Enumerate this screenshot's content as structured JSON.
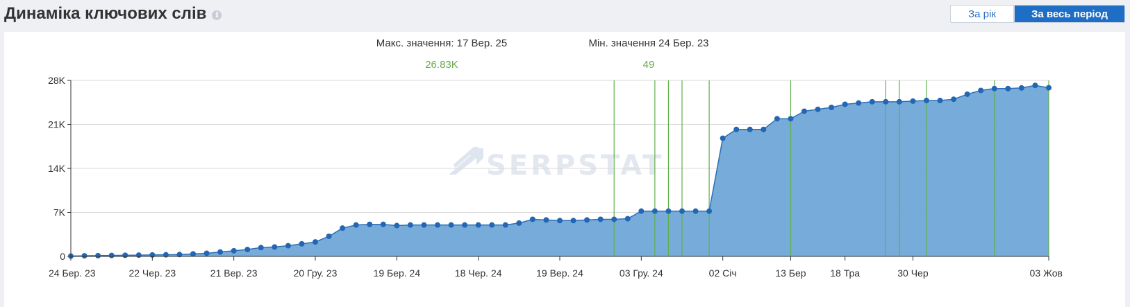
{
  "header": {
    "title": "Динаміка ключових слів",
    "info_icon": "info-icon",
    "btn_year": "За рік",
    "btn_all": "За весь період"
  },
  "stats": {
    "max_label": "Макс. значення: 17 Вер. 25",
    "max_value": "26.83K",
    "min_label": "Мін. значення 24 Бер. 23",
    "min_value": "49"
  },
  "watermark": "SERPSTAT",
  "chart_data": {
    "type": "area",
    "ylim": [
      0,
      28000
    ],
    "yticks": [
      0,
      7000,
      14000,
      21000,
      28000
    ],
    "ytick_labels": [
      "0",
      "7K",
      "14K",
      "21K",
      "28K"
    ],
    "xlim": [
      0,
      72
    ],
    "xticks": [
      0,
      6,
      12,
      18,
      24,
      30,
      36,
      42,
      48,
      53,
      57,
      62,
      72
    ],
    "xtick_labels": [
      "24 Бер. 23",
      "22 Чер. 23",
      "21 Вер. 23",
      "20 Гру. 23",
      "19 Бер. 24",
      "18 Чер. 24",
      "19 Вер. 24",
      "03 Гру. 24",
      "02 Січ",
      "13 Бер",
      "18 Тра",
      "30 Чер",
      "03 Жов"
    ],
    "series": [
      {
        "values": [
          49,
          100,
          120,
          150,
          180,
          200,
          230,
          260,
          300,
          400,
          500,
          700,
          900,
          1100,
          1400,
          1500,
          1700,
          2000,
          2300,
          3200,
          4500,
          5000,
          5100,
          5100,
          4900,
          5000,
          5000,
          5000,
          5000,
          5000,
          5000,
          5000,
          5000,
          5300,
          5900,
          5800,
          5700,
          5700,
          5800,
          5900,
          5900,
          6000,
          7200,
          7200,
          7200,
          7200,
          7200,
          7200,
          18800,
          20200,
          20200,
          20200,
          21900,
          21900,
          23100,
          23400,
          23700,
          24200,
          24400,
          24600,
          24600,
          24600,
          24700,
          24800,
          24800,
          25000,
          25800,
          26400,
          26700,
          26700,
          26800,
          27200,
          26830
        ]
      }
    ],
    "event_markers": [
      40,
      43,
      44,
      45,
      47,
      53,
      60,
      61,
      63,
      68,
      72
    ]
  }
}
